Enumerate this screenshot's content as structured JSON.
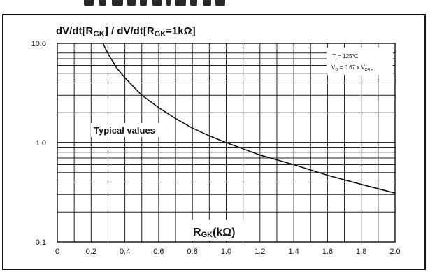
{
  "title": {
    "part1": "dV/dt[R",
    "sub1": "GK",
    "part2": "] / dV/dt[R",
    "sub2": "GK",
    "part3": "=1kΩ]"
  },
  "annotations": {
    "tj_main": "T",
    "tj_sub": "j",
    "tj_value": " = 125°C",
    "vd_main": "V",
    "vd_sub": "D",
    "vd_value": " = 0.67 x V",
    "vd_sub2": "DRM",
    "typical": "Typical values"
  },
  "xaxis_label": {
    "main": "R",
    "sub": "GK",
    "unit": "(kΩ)"
  },
  "chart_data": {
    "type": "line",
    "title": "dV/dt[RGK] / dV/dt[RGK=1kΩ]",
    "xlabel": "RGK(kΩ)",
    "ylabel": "",
    "xlim": [
      0,
      2.0
    ],
    "ylim": [
      0.1,
      10.0
    ],
    "yscale": "log",
    "grid": true,
    "x_ticks": [
      "0",
      "0.2",
      "0.4",
      "0.6",
      "0.8",
      "1.0",
      "1.2",
      "1.4",
      "1.6",
      "1.8",
      "2.0"
    ],
    "y_ticks": [
      "10.0",
      "1.0",
      "0.1"
    ],
    "series": [
      {
        "x": [
          0.27,
          0.3,
          0.35,
          0.4,
          0.5,
          0.6,
          0.7,
          0.8,
          0.9,
          1.0,
          1.2,
          1.4,
          1.6,
          1.8,
          2.0
        ],
        "y": [
          10.0,
          7.9,
          5.7,
          4.5,
          3.0,
          2.25,
          1.75,
          1.4,
          1.17,
          1.0,
          0.75,
          0.6,
          0.47,
          0.38,
          0.31
        ]
      }
    ],
    "annotations": [
      "Tj = 125°C",
      "VD = 0.67 x VDRM",
      "Typical values"
    ]
  }
}
